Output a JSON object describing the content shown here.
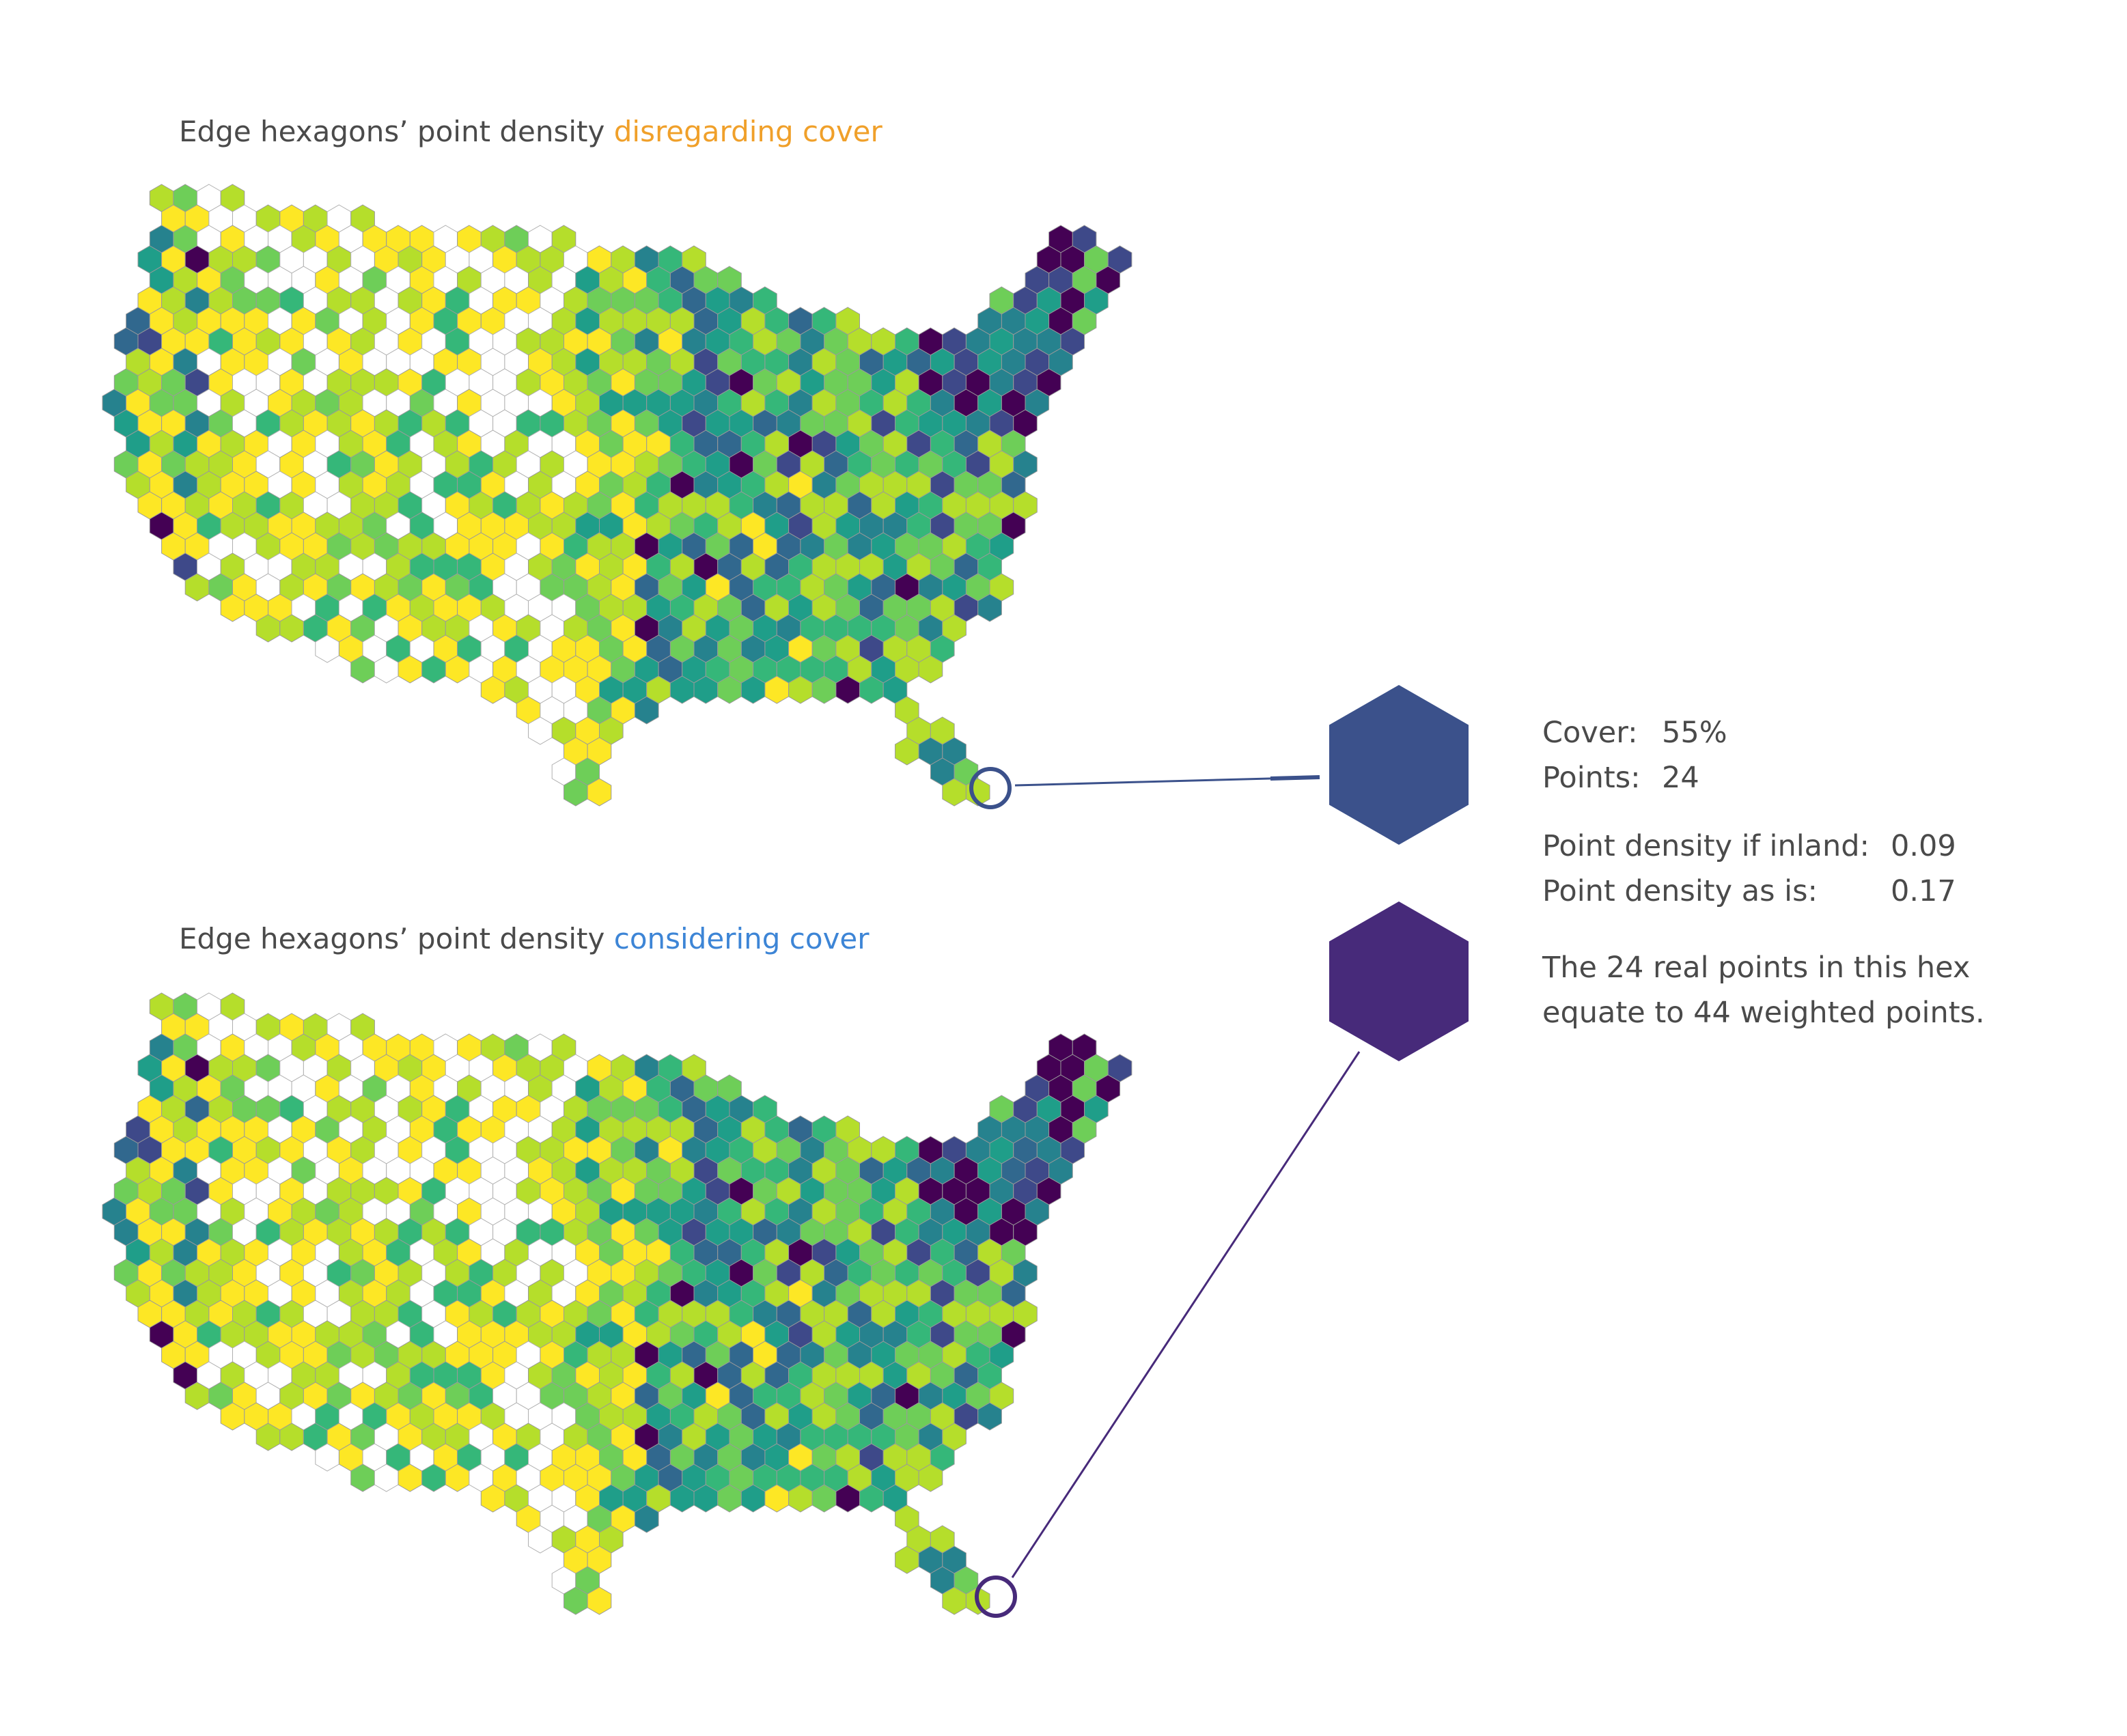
{
  "maps": [
    {
      "title_prefix": "Edge hexagons’ point density",
      "title_highlight": "disregarding cover",
      "highlight_color": "#f0a02a"
    },
    {
      "title_prefix": "Edge hexagons’ point density",
      "title_highlight": "considering cover",
      "highlight_color": "#3d85d6"
    }
  ],
  "callout": {
    "cover_label": "Cover:",
    "cover_value": "55%",
    "points_label": "Points:",
    "points_value": "24",
    "inland_label": "Point density if inland:",
    "inland_value": "0.09",
    "asis_label": "Point density as is:",
    "asis_value": "0.17",
    "note_line1": "The 24 real points in this hex",
    "note_line2": "equate to 44 weighted points.",
    "hex_color_inland": "#3b518b",
    "hex_color_asis": "#472a7a"
  },
  "palette": [
    "#ffffff",
    "#fde725",
    "#b5de2b",
    "#6ece58",
    "#35b779",
    "#1f9e89",
    "#26828e",
    "#31688e",
    "#3e4989",
    "#440154"
  ]
}
